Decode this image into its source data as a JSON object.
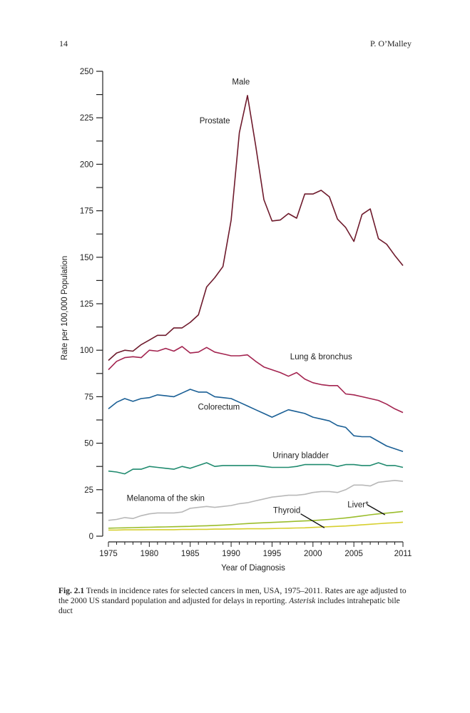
{
  "page": {
    "number": "14",
    "running_head": "P. O’Malley"
  },
  "caption": {
    "label": "Fig. 2.1",
    "text_before": "Trends in incidence rates for selected cancers in men, USA, 1975–2011. Rates are age adjusted to the 2000 US standard population and adjusted for delays in reporting.",
    "asterisk_word": "Asterisk",
    "text_after": "includes intrahepatic bile duct"
  },
  "chart_data": {
    "type": "line",
    "title": "",
    "xlabel": "Year of Diagnosis",
    "ylabel": "Rate per 100,000 Population",
    "xlim": [
      1975,
      2011
    ],
    "ylim": [
      0,
      250
    ],
    "x_ticks": [
      1975,
      1980,
      1985,
      1990,
      1995,
      2000,
      2005,
      2011
    ],
    "y_ticks": [
      0,
      25,
      50,
      75,
      100,
      125,
      150,
      175,
      200,
      225,
      250
    ],
    "grid": false,
    "x": [
      1975,
      1976,
      1977,
      1978,
      1979,
      1980,
      1981,
      1982,
      1983,
      1984,
      1985,
      1986,
      1987,
      1988,
      1989,
      1990,
      1991,
      1992,
      1993,
      1994,
      1995,
      1996,
      1997,
      1998,
      1999,
      2000,
      2001,
      2002,
      2003,
      2004,
      2005,
      2006,
      2007,
      2008,
      2009,
      2010,
      2011
    ],
    "series": [
      {
        "key": "prostate",
        "name": "Prostate",
        "color": "#6e1a2c",
        "values": [
          94.5,
          98.5,
          100,
          99.5,
          103,
          105.5,
          108,
          108,
          112,
          112,
          115,
          119,
          134,
          139,
          145,
          170,
          217,
          237,
          210,
          181,
          169.5,
          170,
          173.5,
          171,
          184,
          184,
          186,
          182.5,
          170.5,
          166,
          158.5,
          173,
          176,
          160,
          157,
          151,
          145.5
        ]
      },
      {
        "key": "lung",
        "name": "Lung & bronchus",
        "color": "#a3234f",
        "values": [
          89.5,
          94,
          96,
          96.5,
          96,
          100,
          99.5,
          101,
          99.5,
          102,
          98.5,
          99,
          101.5,
          99,
          98,
          97,
          97,
          97.5,
          94,
          91,
          89.5,
          88,
          86,
          88,
          84.5,
          82.5,
          81.5,
          81,
          81,
          76.5,
          76,
          75,
          74,
          73,
          71,
          68.5,
          66.5
        ]
      },
      {
        "key": "colorectum",
        "name": "Colorectum",
        "color": "#1a5f95",
        "values": [
          68.5,
          72,
          74,
          72.5,
          74,
          74.5,
          76,
          75.5,
          75,
          77,
          79,
          77.5,
          77.5,
          75,
          74.5,
          74,
          72,
          70,
          68,
          66,
          64,
          66,
          68,
          67,
          66,
          64,
          63,
          62,
          59.5,
          58.5,
          54,
          53.5,
          53.5,
          51,
          48.5,
          47,
          45.5
        ]
      },
      {
        "key": "bladder",
        "name": "Urinary bladder",
        "color": "#1f8a6e",
        "values": [
          35,
          34.5,
          33.5,
          36,
          36,
          37.5,
          37,
          36.5,
          36,
          37.5,
          36.5,
          38,
          39.5,
          37.5,
          38,
          38,
          38,
          38,
          38,
          37.5,
          37,
          37,
          37,
          37.5,
          38.5,
          38.5,
          38.5,
          38.5,
          37.5,
          38.5,
          38.5,
          38,
          38,
          39.5,
          38,
          38,
          37
        ]
      },
      {
        "key": "melanoma",
        "name": "Melanoma of the skin",
        "color": "#b8b8b8",
        "values": [
          8.5,
          9,
          10,
          9.5,
          11,
          12,
          12.5,
          12.5,
          12.5,
          13,
          15,
          15.5,
          16,
          15.5,
          16,
          16.5,
          17.5,
          18,
          19,
          20,
          21,
          21.5,
          22,
          22,
          22.5,
          23.5,
          24,
          24,
          23.5,
          25,
          27.5,
          27.5,
          27,
          29,
          29.5,
          30,
          29.5
        ]
      },
      {
        "key": "liver",
        "name": "Liver*",
        "color": "#9bbd2c",
        "values": [
          4.3,
          4.4,
          4.5,
          4.6,
          4.7,
          4.8,
          4.9,
          5,
          5.1,
          5.2,
          5.3,
          5.5,
          5.6,
          5.8,
          6,
          6.2,
          6.5,
          6.8,
          7,
          7.2,
          7.4,
          7.6,
          7.8,
          8,
          8.2,
          8.4,
          8.7,
          9,
          9.4,
          9.8,
          10.3,
          10.9,
          11.5,
          12,
          12.4,
          12.8,
          13.3
        ]
      },
      {
        "key": "thyroid",
        "name": "Thyroid",
        "color": "#d6cf2e",
        "values": [
          3.3,
          3.3,
          3.4,
          3.4,
          3.4,
          3.5,
          3.5,
          3.5,
          3.5,
          3.6,
          3.6,
          3.7,
          3.7,
          3.8,
          3.8,
          3.9,
          3.9,
          4,
          4,
          4,
          4.1,
          4.2,
          4.3,
          4.4,
          4.5,
          4.7,
          4.9,
          5.1,
          5.3,
          5.5,
          5.8,
          6.1,
          6.4,
          6.7,
          7,
          7.2,
          7.5
        ]
      }
    ],
    "annotations": [
      {
        "text": "Male",
        "x": 1991.2,
        "y": 243
      },
      {
        "text": "Prostate",
        "x": 1988,
        "y": 222
      },
      {
        "text": "Lung & bronchus",
        "x": 2001,
        "y": 95
      },
      {
        "text": "Colorectum",
        "x": 1988.5,
        "y": 68
      },
      {
        "text": "Urinary bladder",
        "x": 1998.5,
        "y": 42
      },
      {
        "text": "Melanoma of the skin",
        "x": 1982,
        "y": 19
      },
      {
        "text": "Thyroid",
        "x": 1996.8,
        "y": 12.5
      }
    ],
    "pointer_labels": [
      {
        "text": "Liver*",
        "x": 2005.5,
        "y": 15.5,
        "from": [
          2006.6,
          17
        ],
        "to": [
          2008.8,
          11.5
        ]
      },
      {
        "text": "Thyroid",
        "from": [
          1998.5,
          12
        ],
        "to": [
          2001.4,
          4.5
        ]
      }
    ]
  }
}
